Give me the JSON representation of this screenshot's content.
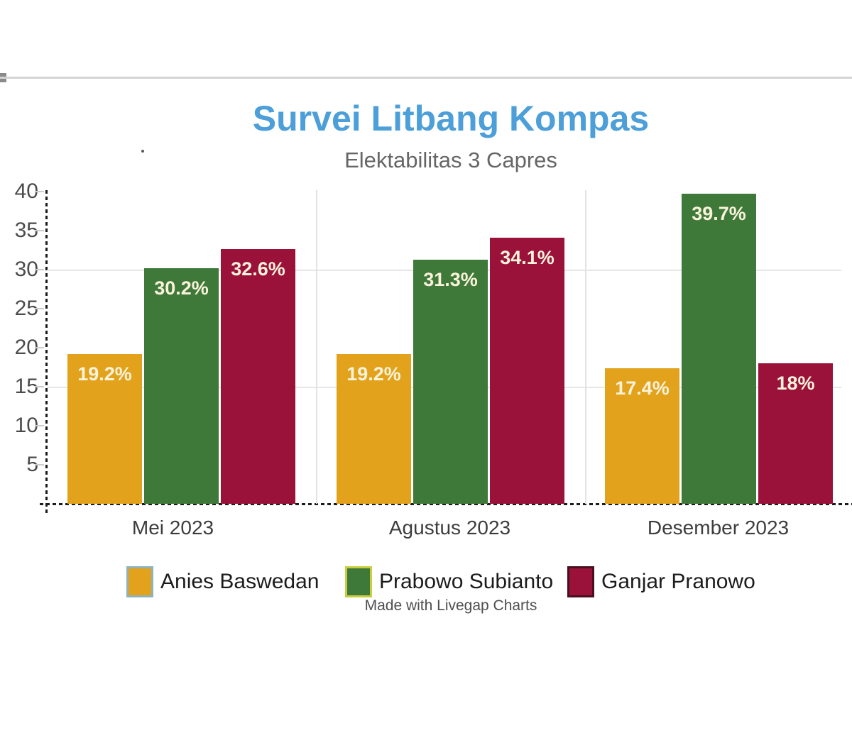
{
  "page": {
    "title": "Survei Litbang Kompas",
    "subtitle": "Elektabilitas 3 Capres",
    "attribution": "Made with Livegap Charts",
    "title_color": "#4C9FD9",
    "subtitle_color": "#666666"
  },
  "chart_data": {
    "type": "bar",
    "title": "Survei Litbang Kompas",
    "subtitle": "Elektabilitas 3 Capres",
    "categories": [
      "Mei 2023",
      "Agustus 2023",
      "Desember 2023"
    ],
    "series": [
      {
        "name": "Anies Baswedan",
        "color": "#E2A21B",
        "swatch_border": "#8FB3BC",
        "values": [
          19.2,
          19.2,
          17.4
        ],
        "labels": [
          "19.2%",
          "19.2%",
          "17.4%"
        ]
      },
      {
        "name": "Prabowo Subianto",
        "color": "#3F7939",
        "swatch_border": "#C9CE3D",
        "values": [
          30.2,
          31.3,
          39.7
        ],
        "labels": [
          "30.2%",
          "31.3%",
          "39.7%"
        ]
      },
      {
        "name": "Ganjar Pranowo",
        "color": "#9A1139",
        "swatch_border": "#4A0E22",
        "values": [
          32.6,
          34.1,
          18
        ],
        "labels": [
          "32.6%",
          "34.1%",
          "18%"
        ]
      }
    ],
    "yticks": [
      5,
      10,
      15,
      20,
      25,
      30,
      35,
      40
    ],
    "ylim": [
      0,
      41
    ],
    "hgridlines": [
      15,
      30
    ],
    "grid": "faint horizontal lines at 15 and 30; faint vertical separators between category groups",
    "legend_position": "bottom",
    "value_label_color": "#FAF3DC",
    "axis_style": "dashed black left and bottom axes",
    "xlabel": "",
    "ylabel": ""
  }
}
